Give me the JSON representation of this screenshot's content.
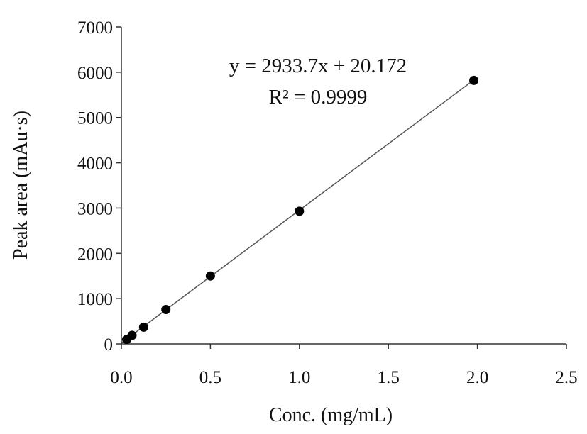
{
  "chart_data": {
    "type": "scatter",
    "xlabel": "Conc.  (mg/mL)",
    "ylabel": "Peak area (mAu·s)",
    "xlim": [
      0,
      2.5
    ],
    "ylim": [
      0,
      7000
    ],
    "x_ticks": [
      0,
      0.5,
      1.0,
      1.5,
      2.0,
      2.5
    ],
    "x_tick_labels": [
      "0.0",
      "0.5",
      "1.0",
      "1.5",
      "2.0",
      "2.5"
    ],
    "y_ticks": [
      0,
      1000,
      2000,
      3000,
      4000,
      5000,
      6000,
      7000
    ],
    "y_tick_labels": [
      "0",
      "1000",
      "2000",
      "3000",
      "4000",
      "5000",
      "6000",
      "7000"
    ],
    "grid": false,
    "points": [
      {
        "x": 0.03,
        "y": 100
      },
      {
        "x": 0.06,
        "y": 190
      },
      {
        "x": 0.125,
        "y": 370
      },
      {
        "x": 0.25,
        "y": 760
      },
      {
        "x": 0.5,
        "y": 1500
      },
      {
        "x": 1.0,
        "y": 2930
      },
      {
        "x": 1.98,
        "y": 5820
      }
    ],
    "trendline": {
      "slope": 2933.7,
      "intercept": 20.172,
      "x_range": [
        0,
        1.98
      ]
    },
    "annotations": {
      "equation": "y = 2933.7x + 20.172",
      "r_squared": "R² = 0.9999"
    },
    "colors": {
      "marker": "#000000",
      "line": "#555555",
      "axis": "#333333"
    }
  }
}
